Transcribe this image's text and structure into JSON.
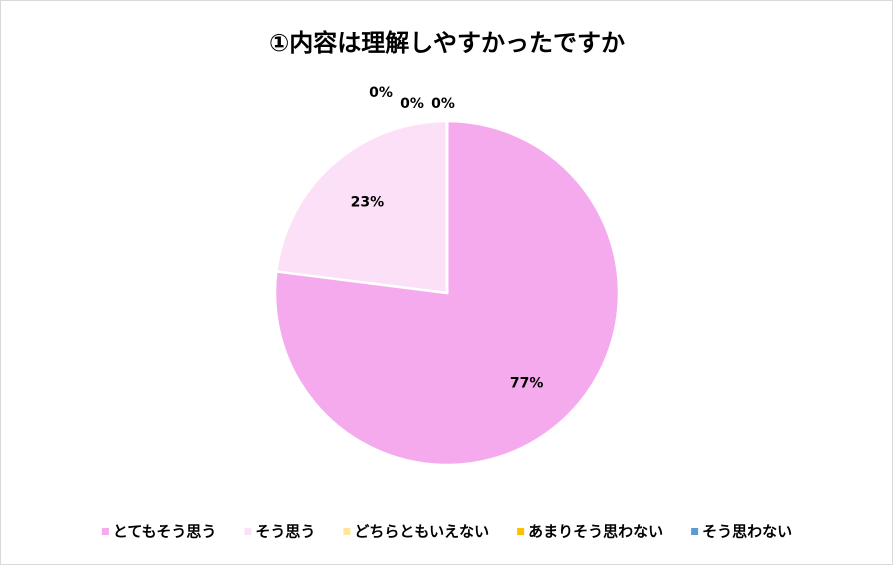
{
  "chart_data": {
    "type": "pie",
    "title": "①内容は理解しやすかったですか",
    "categories": [
      "とてもそう思う",
      "そう思う",
      "どちらともいえない",
      "あまりそう思わない",
      "そう思わない"
    ],
    "values": [
      77,
      23,
      0,
      0,
      0
    ],
    "value_labels": [
      "77%",
      "23%",
      "0%",
      "0%",
      "0%"
    ],
    "colors": [
      "#f5aaee",
      "#fbe0f7",
      "#ffe699",
      "#ffc000",
      "#5b9bd5"
    ],
    "legend": "bottom"
  }
}
